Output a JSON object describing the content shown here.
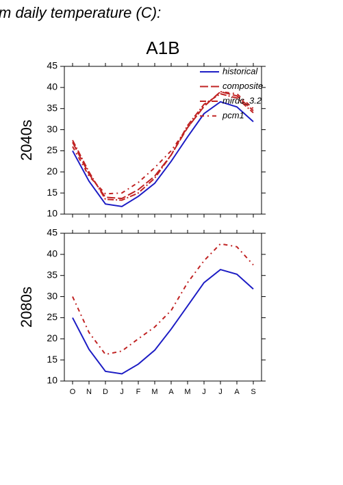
{
  "header": {
    "text": "m daily temperature (C):"
  },
  "chart_data": [
    {
      "type": "line",
      "title": "A1B",
      "ylabel": "2040s",
      "ylim": [
        10,
        45
      ],
      "yticks": [
        10,
        15,
        20,
        25,
        30,
        35,
        40,
        45
      ],
      "series": [
        {
          "name": "historical",
          "color": "#1c1cc4",
          "dash": "none",
          "values": [
            25,
            17.8,
            12.4,
            11.8,
            14.2,
            17.3,
            22.5,
            28.3,
            33.8,
            36.6,
            35.4,
            31.9
          ]
        },
        {
          "name": "composite",
          "color": "#c02222",
          "dash": "12,4",
          "values": [
            27,
            19.5,
            14,
            13.7,
            15.8,
            19,
            24,
            30.5,
            35.5,
            39,
            38,
            34.5
          ]
        },
        {
          "name": "mirdc_3.2",
          "color": "#c02222",
          "dash": "9,3,2,3",
          "values": [
            27.5,
            20,
            13.5,
            13.3,
            15,
            18.5,
            24,
            31,
            36,
            38.5,
            37.5,
            34
          ]
        },
        {
          "name": "pcm1",
          "color": "#c02222",
          "dash": "6,5,2,5",
          "values": [
            26,
            19,
            14.8,
            15,
            17.5,
            21,
            25,
            30.5,
            35.5,
            39,
            38.5,
            35
          ]
        }
      ]
    },
    {
      "type": "line",
      "ylabel": "2080s",
      "categories": [
        "O",
        "N",
        "D",
        "J",
        "F",
        "M",
        "A",
        "M",
        "J",
        "J",
        "A",
        "S"
      ],
      "ylim": [
        10,
        45
      ],
      "yticks": [
        10,
        15,
        20,
        25,
        30,
        35,
        40,
        45
      ],
      "series": [
        {
          "color": "#1c1cc4",
          "dash": "none",
          "values": [
            25,
            17.5,
            12.3,
            11.7,
            14,
            17.3,
            22.3,
            27.8,
            33.3,
            36.4,
            35.3,
            31.8
          ]
        },
        {
          "color": "#c02222",
          "dash": "6,5,2,5",
          "values": [
            30,
            21.5,
            16.3,
            17.1,
            20,
            22.8,
            26.7,
            33.3,
            38.5,
            42.5,
            41.8,
            37.5
          ]
        }
      ]
    }
  ]
}
